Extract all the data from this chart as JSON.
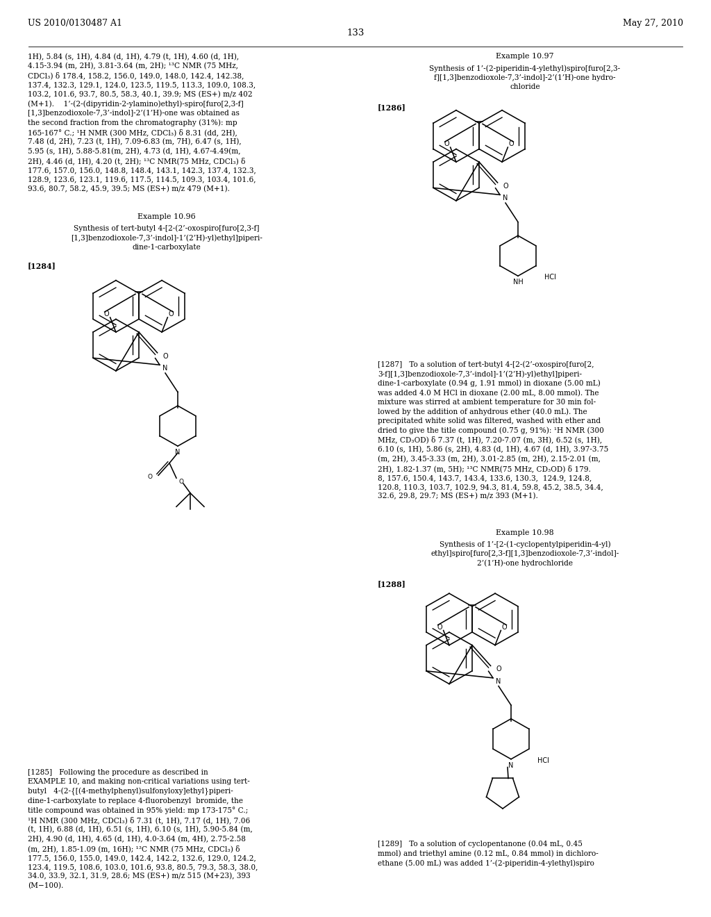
{
  "header_left": "US 2010/0130487 A1",
  "header_right": "May 27, 2010",
  "page_number": "133",
  "bg": "#ffffff",
  "fg": "#000000"
}
